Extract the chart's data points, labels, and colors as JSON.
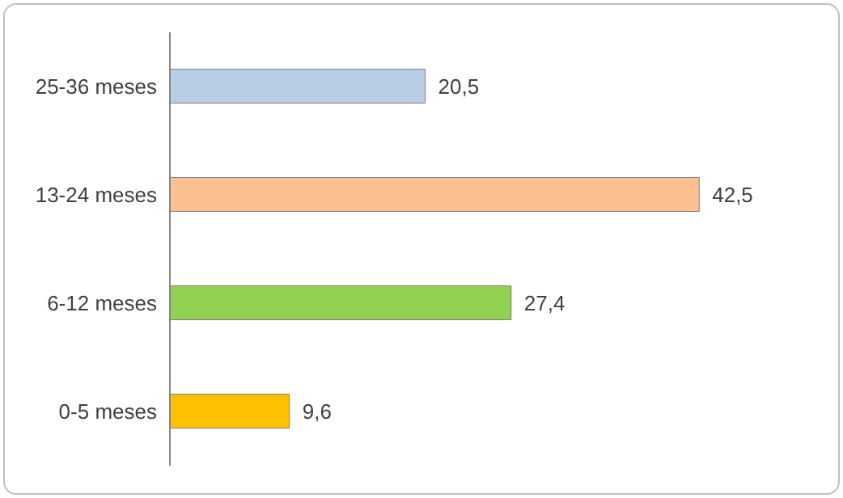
{
  "chart_data": {
    "type": "bar",
    "orientation": "horizontal",
    "categories": [
      "25-36 meses",
      "13-24 meses",
      "6-12 meses",
      "0-5 meses"
    ],
    "values": [
      20.5,
      42.5,
      27.4,
      9.6
    ],
    "value_labels": [
      "20,5",
      "42,5",
      "27,4",
      "9,6"
    ],
    "colors": [
      "#b9cde5",
      "#fac090",
      "#92d050",
      "#ffc000"
    ]
  }
}
